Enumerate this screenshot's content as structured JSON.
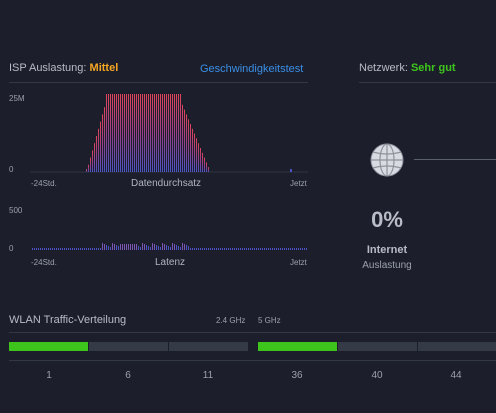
{
  "isp": {
    "title": "ISP Auslastung:",
    "level": "Mittel",
    "speedtest_link": "Geschwindigkeitstest",
    "throughput": {
      "y_max_label": "25M",
      "y_min_label": "0",
      "x_start_label": "-24Std.",
      "x_end_label": "Jetzt",
      "caption": "Datendurchsatz"
    },
    "latency": {
      "y_max_label": "500",
      "y_min_label": "0",
      "x_start_label": "-24Std.",
      "x_end_label": "Jetzt",
      "caption": "Latenz"
    }
  },
  "network": {
    "title": "Netzwerk:",
    "level": "Sehr gut",
    "percent": "0%",
    "internet_label": "Internet",
    "usage_label": "Auslastung"
  },
  "wlan": {
    "title": "WLAN Traffic-Verteilung",
    "band_24": "2.4 GHz",
    "band_5": "5 GHz",
    "channels_24": [
      "1",
      "6",
      "11"
    ],
    "channels_5": [
      "36",
      "40",
      "44"
    ],
    "usage_24_fraction": 0.33,
    "usage_5_fraction": 0.33
  },
  "colors": {
    "accent_orange": "#f5a623",
    "accent_green": "#3ec51c",
    "link_blue": "#3a8ee6",
    "bar_green": "#3ec51c"
  }
}
